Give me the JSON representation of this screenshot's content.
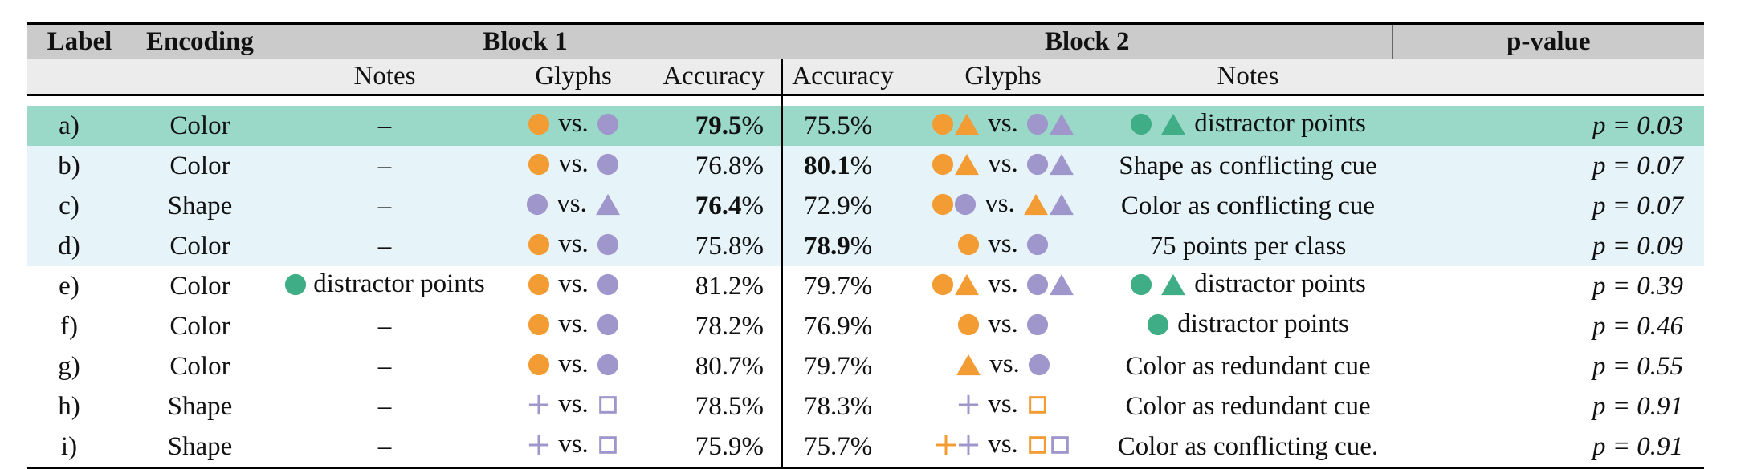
{
  "colors": {
    "orange": "#f39c33",
    "purple": "#9f96cc",
    "green": "#3fae86",
    "highlight_strong": "#9ad8c7",
    "highlight_light": "#e6f4f9",
    "header_dark": "#cbcbcb",
    "header_light": "#ececec"
  },
  "header": {
    "label": "Label",
    "encoding": "Encoding",
    "block1": "Block 1",
    "block2": "Block 2",
    "pvalue": "p-value",
    "notes1": "Notes",
    "glyphs1": "Glyphs",
    "accuracy1": "Accuracy",
    "accuracy2": "Accuracy",
    "glyphs2": "Glyphs",
    "notes2": "Notes"
  },
  "vs": "vs.",
  "rows": [
    {
      "label": "a)",
      "encoding": "Color",
      "notes1": "–",
      "acc1": "79.5",
      "acc2": "75.5",
      "notes2": "distractor points",
      "p": "p = 0.03"
    },
    {
      "label": "b)",
      "encoding": "Color",
      "notes1": "–",
      "acc1": "76.8",
      "acc2": "80.1",
      "notes2": "Shape as conflicting cue",
      "p": "p = 0.07"
    },
    {
      "label": "c)",
      "encoding": "Shape",
      "notes1": "–",
      "acc1": "76.4",
      "acc2": "72.9",
      "notes2": "Color as conflicting cue",
      "p": "p = 0.07"
    },
    {
      "label": "d)",
      "encoding": "Color",
      "notes1": "–",
      "acc1": "75.8",
      "acc2": "78.9",
      "notes2": "75 points per class",
      "p": "p = 0.09"
    },
    {
      "label": "e)",
      "encoding": "Color",
      "notes1": "distractor points",
      "acc1": "81.2",
      "acc2": "79.7",
      "notes2": "distractor points",
      "p": "p = 0.39"
    },
    {
      "label": "f)",
      "encoding": "Color",
      "notes1": "–",
      "acc1": "78.2",
      "acc2": "76.9",
      "notes2": "distractor points",
      "p": "p = 0.46"
    },
    {
      "label": "g)",
      "encoding": "Color",
      "notes1": "–",
      "acc1": "80.7",
      "acc2": "79.7",
      "notes2": "Color as redundant cue",
      "p": "p = 0.55"
    },
    {
      "label": "h)",
      "encoding": "Shape",
      "notes1": "–",
      "acc1": "78.5",
      "acc2": "78.3",
      "notes2": "Color as redundant cue",
      "p": "p = 0.91"
    },
    {
      "label": "i)",
      "encoding": "Shape",
      "notes1": "–",
      "acc1": "75.9",
      "acc2": "75.7",
      "notes2": "Color as conflicting cue.",
      "p": "p = 0.91"
    }
  ],
  "percent": "%"
}
